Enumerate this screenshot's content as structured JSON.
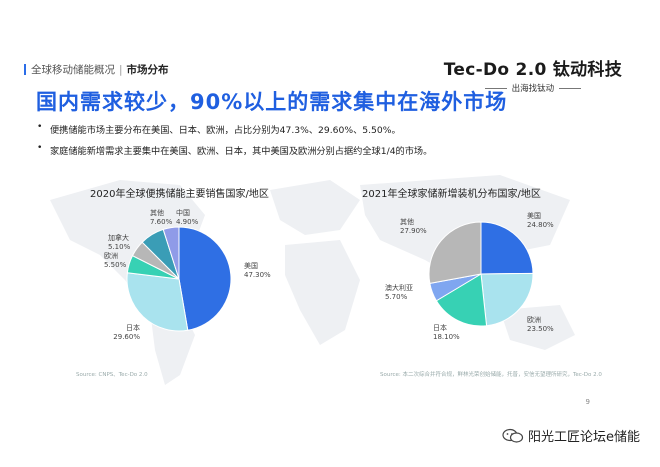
{
  "header": {
    "section": "全球移动储能概况",
    "separator": "|",
    "current": "市场分布"
  },
  "logo": {
    "name": "Tec-Do 2.0 钛动科技",
    "slogan": "出海找钛动"
  },
  "title": "国内需求较少，90%以上的需求集中在海外市场",
  "bullets": [
    "便携储能市场主要分布在美国、日本、欧洲，占比分别为47.3%、29.60%、5.50%。",
    "家庭储能新增需求主要集中在美国、欧洲、日本，其中美国及欧洲分别占据约全球1/4的市场。"
  ],
  "chart_data": [
    {
      "type": "pie",
      "title": "2020年全球便携储能主要销售国家/地区",
      "slices": [
        {
          "label": "美国",
          "value_label": "47.30%",
          "value": 47.3,
          "color": "#2f6fe4"
        },
        {
          "label": "日本",
          "value_label": "29.60%",
          "value": 29.6,
          "color": "#a9e3ee"
        },
        {
          "label": "欧洲",
          "value_label": "5.50%",
          "value": 5.5,
          "color": "#37d1b4"
        },
        {
          "label": "加拿大",
          "value_label": "5.10%",
          "value": 5.1,
          "color": "#b7b7b7"
        },
        {
          "label": "其他",
          "value_label": "7.60%",
          "value": 7.6,
          "color": "#3a9db6"
        },
        {
          "label": "中国",
          "value_label": "4.90%",
          "value": 4.9,
          "color": "#8f9be8"
        }
      ],
      "source": "Source: CNPS、Tec-Do 2.0"
    },
    {
      "type": "pie",
      "title": "2021年全球家储新增装机分布国家/地区",
      "slices": [
        {
          "label": "美国",
          "value_label": "24.80%",
          "value": 24.8,
          "color": "#2f6fe4"
        },
        {
          "label": "欧洲",
          "value_label": "23.50%",
          "value": 23.5,
          "color": "#a9e3ee"
        },
        {
          "label": "日本",
          "value_label": "18.10%",
          "value": 18.1,
          "color": "#37d1b4"
        },
        {
          "label": "澳大利亚",
          "value_label": "5.70%",
          "value": 5.7,
          "color": "#7fa6f0"
        },
        {
          "label": "其他",
          "value_label": "27.90%",
          "value": 27.9,
          "color": "#b7b7b7"
        }
      ],
      "source": "Source: 本二次综合并符合规，鲜林光荣创始储能，托普，安信无望理所研究，Tec-Do 2.0"
    }
  ],
  "page_number": "9",
  "watermark": "阳光工匠论坛e储能"
}
